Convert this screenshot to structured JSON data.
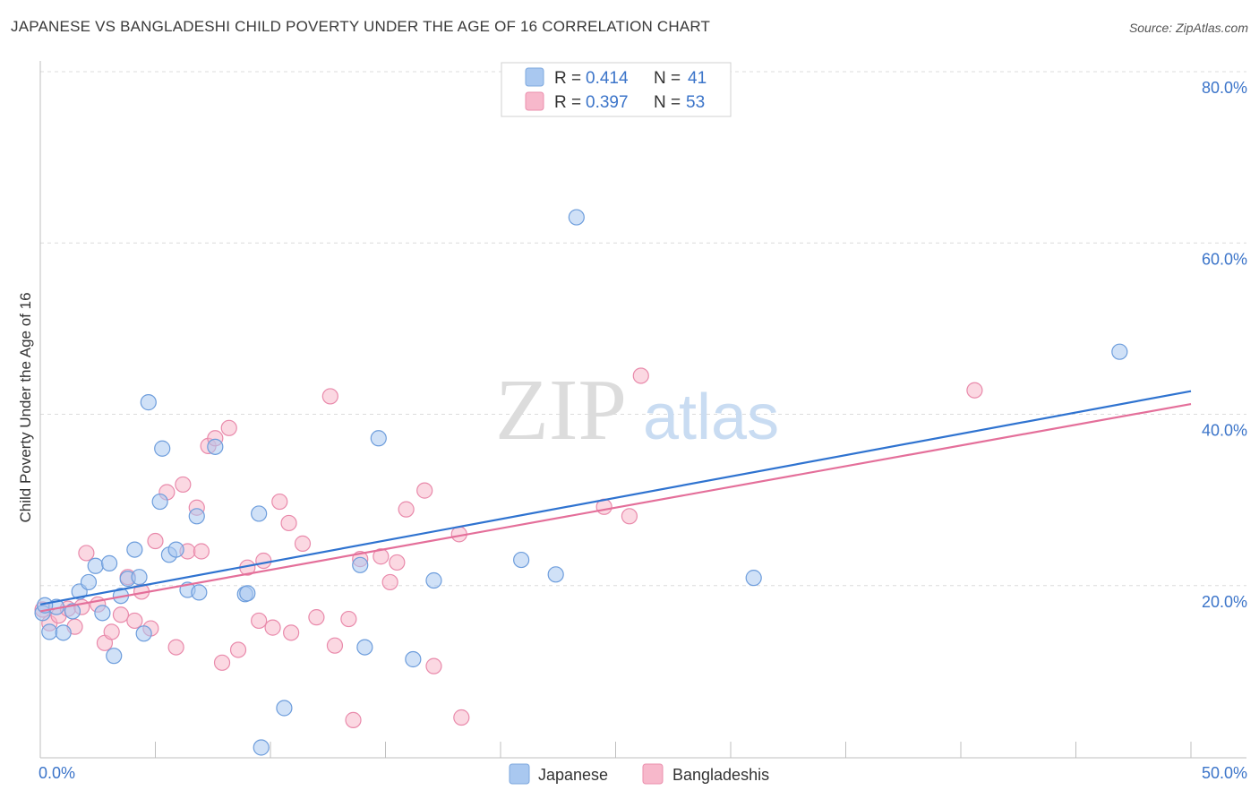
{
  "title": "JAPANESE VS BANGLADESHI CHILD POVERTY UNDER THE AGE OF 16 CORRELATION CHART",
  "source": "Source: ZipAtlas.com",
  "watermark": {
    "zip": "ZIP",
    "atlas": "atlas"
  },
  "colors": {
    "japanese_fill": "#a9c8f0",
    "japanese_line": "#2f73d0",
    "bangladeshi_fill": "#f7b8cb",
    "bangladeshi_line": "#e46f9a",
    "tick_text": "#3b74c9",
    "grid": "#d9d9d9"
  },
  "stats": {
    "japanese": {
      "r_label": "R =",
      "r": "0.414",
      "n_label": "N =",
      "n": "41"
    },
    "bangladeshi": {
      "r_label": "R =",
      "r": "0.397",
      "n_label": "N =",
      "n": "53"
    }
  },
  "chart_data": {
    "type": "scatter",
    "ylabel": "Child Poverty Under the Age of 16",
    "xlim": [
      0,
      50
    ],
    "ylim": [
      0,
      80
    ],
    "x_tick_labels": [
      "0.0%",
      "50.0%"
    ],
    "y_ticks": [
      20,
      40,
      60,
      80
    ],
    "y_tick_labels": [
      "20.0%",
      "40.0%",
      "60.0%",
      "80.0%"
    ],
    "grid": true,
    "legend_position": "bottom",
    "series": [
      {
        "name": "Japanese",
        "trend": {
          "x": [
            0,
            50
          ],
          "y": [
            17.8,
            42.7
          ]
        },
        "points": [
          [
            0.1,
            16.8
          ],
          [
            0.4,
            14.6
          ],
          [
            0.7,
            17.5
          ],
          [
            1.0,
            14.5
          ],
          [
            1.4,
            17.0
          ],
          [
            1.7,
            19.3
          ],
          [
            2.1,
            20.4
          ],
          [
            2.4,
            22.3
          ],
          [
            2.7,
            16.8
          ],
          [
            3.0,
            22.6
          ],
          [
            3.2,
            11.8
          ],
          [
            3.5,
            18.8
          ],
          [
            3.8,
            20.8
          ],
          [
            4.1,
            24.2
          ],
          [
            4.3,
            21.0
          ],
          [
            4.5,
            14.4
          ],
          [
            4.7,
            41.4
          ],
          [
            5.2,
            29.8
          ],
          [
            5.3,
            36.0
          ],
          [
            5.6,
            23.6
          ],
          [
            5.9,
            24.2
          ],
          [
            6.4,
            19.5
          ],
          [
            6.9,
            19.2
          ],
          [
            6.8,
            28.1
          ],
          [
            7.6,
            36.2
          ],
          [
            8.9,
            19.0
          ],
          [
            9.0,
            19.1
          ],
          [
            9.6,
            1.1
          ],
          [
            9.5,
            28.4
          ],
          [
            10.6,
            5.7
          ],
          [
            13.9,
            22.4
          ],
          [
            14.1,
            12.8
          ],
          [
            14.7,
            37.2
          ],
          [
            16.2,
            11.4
          ],
          [
            17.1,
            20.6
          ],
          [
            20.9,
            23.0
          ],
          [
            22.4,
            21.3
          ],
          [
            23.3,
            63.0
          ],
          [
            31.0,
            20.9
          ],
          [
            46.9,
            47.3
          ],
          [
            0.2,
            17.7
          ]
        ]
      },
      {
        "name": "Bangladeshis",
        "trend": {
          "x": [
            0,
            50
          ],
          "y": [
            17.0,
            41.2
          ]
        },
        "points": [
          [
            0.1,
            17.2
          ],
          [
            0.4,
            15.6
          ],
          [
            0.8,
            16.5
          ],
          [
            1.2,
            17.3
          ],
          [
            1.5,
            15.2
          ],
          [
            1.8,
            17.5
          ],
          [
            2.0,
            23.8
          ],
          [
            2.5,
            17.8
          ],
          [
            2.8,
            13.3
          ],
          [
            3.1,
            14.6
          ],
          [
            3.5,
            16.6
          ],
          [
            3.8,
            21.0
          ],
          [
            4.1,
            15.9
          ],
          [
            4.4,
            19.3
          ],
          [
            4.8,
            15.0
          ],
          [
            5.0,
            25.2
          ],
          [
            5.5,
            30.9
          ],
          [
            5.9,
            12.8
          ],
          [
            6.2,
            31.8
          ],
          [
            6.4,
            24.0
          ],
          [
            6.8,
            29.1
          ],
          [
            7.0,
            24.0
          ],
          [
            7.3,
            36.3
          ],
          [
            7.6,
            37.2
          ],
          [
            7.9,
            11.0
          ],
          [
            8.2,
            38.4
          ],
          [
            8.6,
            12.5
          ],
          [
            9.0,
            22.1
          ],
          [
            9.5,
            15.9
          ],
          [
            9.7,
            22.9
          ],
          [
            10.1,
            15.1
          ],
          [
            10.4,
            29.8
          ],
          [
            10.8,
            27.3
          ],
          [
            10.9,
            14.5
          ],
          [
            11.4,
            24.9
          ],
          [
            12.0,
            16.3
          ],
          [
            12.6,
            42.1
          ],
          [
            12.8,
            13.0
          ],
          [
            13.4,
            16.1
          ],
          [
            13.6,
            4.3
          ],
          [
            13.9,
            23.1
          ],
          [
            14.8,
            23.4
          ],
          [
            15.2,
            20.4
          ],
          [
            15.5,
            22.7
          ],
          [
            15.9,
            28.9
          ],
          [
            16.7,
            31.1
          ],
          [
            17.1,
            10.6
          ],
          [
            18.2,
            26.0
          ],
          [
            18.3,
            4.6
          ],
          [
            24.5,
            29.2
          ],
          [
            25.6,
            28.1
          ],
          [
            26.1,
            44.5
          ],
          [
            40.6,
            42.8
          ]
        ]
      }
    ]
  }
}
